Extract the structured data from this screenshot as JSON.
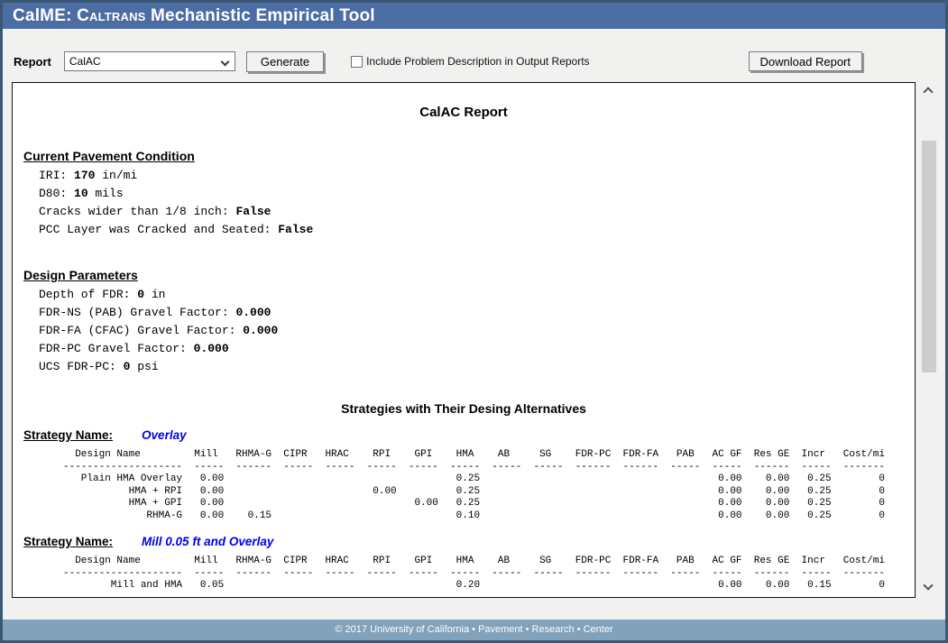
{
  "colors": {
    "window-border": "#3a5775",
    "titlebar": "#4c6da3",
    "footer": "#82a1ba",
    "page-bg": "#f1f1ef",
    "strategy": "#0000ee",
    "thumb": "#cdcdcd"
  },
  "window": {
    "title_prefix": "CalME: ",
    "title_caltrans": "Caltrans",
    "title_rest": " Mechanistic Empirical Tool"
  },
  "toolbar": {
    "report_label": "Report",
    "report_value": "CalAC",
    "generate_label": "Generate",
    "checkbox_label": "Include Problem Description in Output Reports",
    "checkbox_checked": false,
    "download_label": "Download Report"
  },
  "icons": {
    "select_arrow": "chevron-down",
    "scroll_up": "chevron-up",
    "scroll_down": "chevron-down"
  },
  "report": {
    "title": "CalAC Report",
    "sections": [
      {
        "heading": "Current Pavement Condition",
        "items": [
          {
            "pre": "IRI: ",
            "bold": "170",
            "post": " in/mi"
          },
          {
            "pre": "D80: ",
            "bold": "10",
            "post": " mils"
          },
          {
            "pre": "Cracks wider than 1/8 inch: ",
            "bold": "False",
            "post": ""
          },
          {
            "pre": "PCC Layer was Cracked and Seated: ",
            "bold": "False",
            "post": ""
          }
        ]
      },
      {
        "heading": "Design Parameters",
        "items": [
          {
            "pre": "Depth of FDR: ",
            "bold": "0",
            "post": " in"
          },
          {
            "pre": "FDR-NS (PAB) Gravel Factor: ",
            "bold": "0.000",
            "post": ""
          },
          {
            "pre": "FDR-FA (CFAC) Gravel Factor: ",
            "bold": "0.000",
            "post": ""
          },
          {
            "pre": "FDR-PC Gravel Factor: ",
            "bold": "0.000",
            "post": ""
          },
          {
            "pre": "UCS FDR-PC: ",
            "bold": "0",
            "post": " psi"
          }
        ]
      }
    ],
    "strategies_heading": "Strategies with Their Desing Alternatives",
    "strategy_name_label": "Strategy Name:",
    "table_columns": [
      {
        "label": "Design Name",
        "dashes": 20
      },
      {
        "label": "Mill",
        "dashes": 5
      },
      {
        "label": "RHMA-G",
        "dashes": 6
      },
      {
        "label": "CIPR",
        "dashes": 5
      },
      {
        "label": "HRAC",
        "dashes": 5
      },
      {
        "label": "RPI",
        "dashes": 5
      },
      {
        "label": "GPI",
        "dashes": 5
      },
      {
        "label": "HMA",
        "dashes": 5
      },
      {
        "label": "AB",
        "dashes": 5
      },
      {
        "label": "SG",
        "dashes": 5
      },
      {
        "label": "FDR-PC",
        "dashes": 6
      },
      {
        "label": "FDR-FA",
        "dashes": 6
      },
      {
        "label": "PAB",
        "dashes": 5
      },
      {
        "label": "AC GF",
        "dashes": 5
      },
      {
        "label": "Res GE",
        "dashes": 6
      },
      {
        "label": "Incr",
        "dashes": 5
      },
      {
        "label": "Cost/mi",
        "dashes": 7
      }
    ],
    "strategies": [
      {
        "name": "Overlay",
        "rows": [
          {
            "Design Name": "Plain HMA Overlay",
            "Mill": "0.00",
            "HMA": "0.25",
            "AC GF": "0.00",
            "Res GE": "0.00",
            "Incr": "0.25",
            "Cost/mi": "0"
          },
          {
            "Design Name": "HMA + RPI",
            "Mill": "0.00",
            "RPI": "0.00",
            "HMA": "0.25",
            "AC GF": "0.00",
            "Res GE": "0.00",
            "Incr": "0.25",
            "Cost/mi": "0"
          },
          {
            "Design Name": "HMA + GPI",
            "Mill": "0.00",
            "GPI": "0.00",
            "HMA": "0.25",
            "AC GF": "0.00",
            "Res GE": "0.00",
            "Incr": "0.25",
            "Cost/mi": "0"
          },
          {
            "Design Name": "RHMA-G",
            "Mill": "0.00",
            "RHMA-G": "0.15",
            "HMA": "0.10",
            "AC GF": "0.00",
            "Res GE": "0.00",
            "Incr": "0.25",
            "Cost/mi": "0"
          }
        ]
      },
      {
        "name": "Mill 0.05 ft and Overlay",
        "rows": [
          {
            "Design Name": "Mill and HMA",
            "Mill": "0.05",
            "HMA": "0.20",
            "AC GF": "0.00",
            "Res GE": "0.00",
            "Incr": "0.15",
            "Cost/mi": "0"
          }
        ]
      }
    ]
  },
  "footer": {
    "text": "© 2017 University of California • Pavement • Research • Center"
  }
}
